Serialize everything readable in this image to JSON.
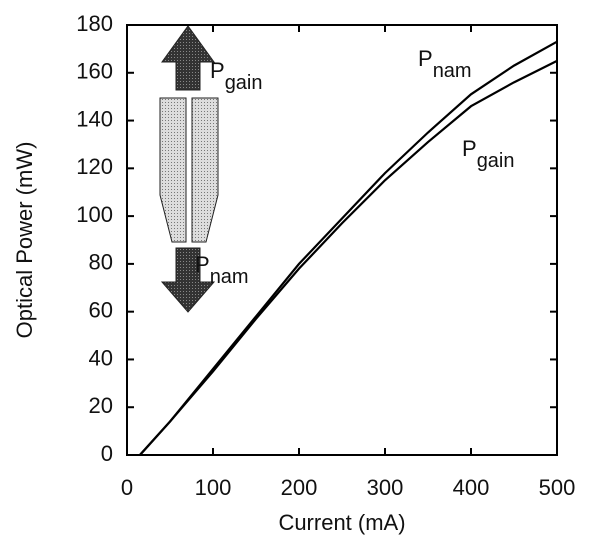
{
  "chart_data": {
    "type": "line",
    "xlabel": "Current (mA)",
    "ylabel": "Optical Power (mW)",
    "x": [
      15,
      50,
      100,
      150,
      200,
      250,
      300,
      350,
      400,
      450,
      500
    ],
    "series": [
      {
        "color": "#000000",
        "values": [
          0,
          14,
          36,
          58,
          80,
          99,
          118,
          135,
          151,
          163,
          173
        ]
      },
      {
        "color": "#000000",
        "values": [
          0,
          14,
          35,
          57,
          78,
          97,
          115,
          131,
          146,
          156,
          165
        ]
      }
    ],
    "xlim": [
      0,
      500
    ],
    "xticks": [
      0,
      100,
      200,
      300,
      400,
      500
    ],
    "ylim": [
      0,
      180
    ],
    "yticks": [
      0,
      20,
      40,
      60,
      80,
      100,
      120,
      140,
      160,
      180
    ],
    "annotations": [
      {
        "text": "P",
        "subscript": "nam"
      },
      {
        "text": "P",
        "subscript": "gain"
      },
      {
        "text": "P",
        "subscript": "gain"
      },
      {
        "text": "P",
        "subscript": "nam"
      }
    ]
  }
}
